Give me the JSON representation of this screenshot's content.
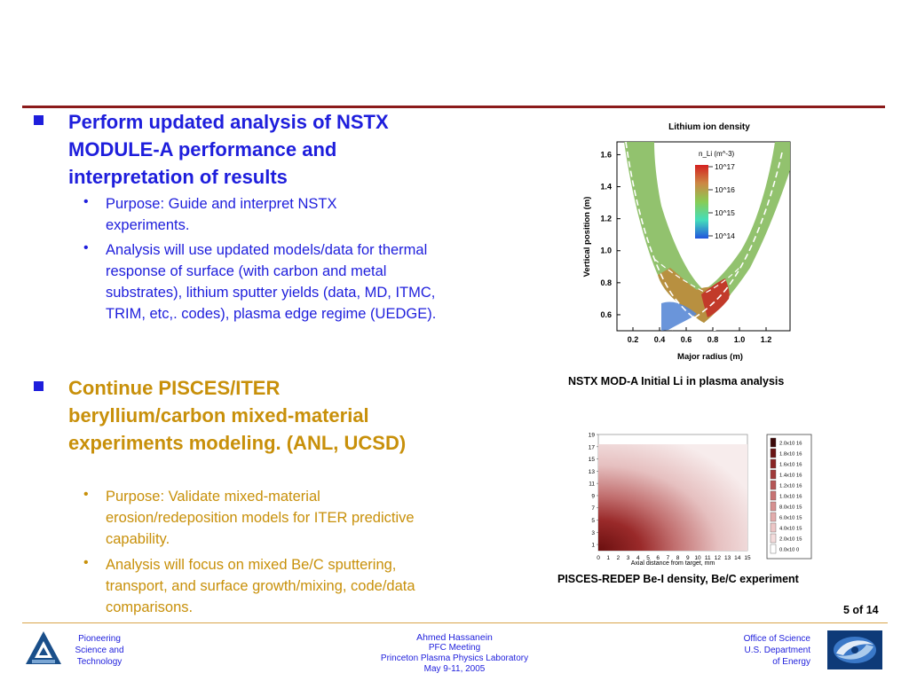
{
  "bullets": [
    {
      "heading": "Perform updated analysis of NSTX MODULE-A performance and interpretation of results",
      "subs": [
        "Purpose:  Guide and interpret NSTX experiments.",
        "Analysis will use updated models/data for thermal response of surface (with carbon and metal substrates), lithium sputter yields (data, MD, ITMC, TRIM, etc,. codes), plasma edge regime (UEDGE)."
      ]
    },
    {
      "heading": "Continue PISCES/ITER beryllium/carbon mixed-material experiments modeling. (ANL, UCSD)",
      "subs": [
        "Purpose:  Validate mixed-material erosion/redeposition models for ITER predictive capability.",
        "Analysis will focus on mixed Be/C sputtering, transport, and surface growth/mixing, code/data comparisons."
      ]
    }
  ],
  "chart_data": [
    {
      "type": "heatmap",
      "title": "Lithium ion density",
      "xlabel": "Major radius (m)",
      "ylabel": "Vertical position (m)",
      "x_ticks": [
        "0.2",
        "0.4",
        "0.6",
        "0.8",
        "1.0",
        "1.2"
      ],
      "y_ticks": [
        "0.6",
        "0.8",
        "1.0",
        "1.2",
        "1.4",
        "1.6"
      ],
      "xlim": [
        0.08,
        1.38
      ],
      "ylim": [
        0.5,
        1.68
      ],
      "colorbar_label": "n_Li (m^-3)",
      "colorbar_ticks": [
        "10^17",
        "10^16",
        "10^15",
        "10^14"
      ],
      "caption": "NSTX MOD-A Initial Li in plasma analysis"
    },
    {
      "type": "heatmap",
      "xlabel": "Axial distance from target, mm",
      "x_ticks": [
        "0",
        "1",
        "2",
        "3",
        "4",
        "5",
        "6",
        "7",
        "8",
        "9",
        "10",
        "11",
        "12",
        "13",
        "14",
        "15"
      ],
      "y_ticks": [
        "1",
        "3",
        "5",
        "7",
        "9",
        "11",
        "13",
        "15",
        "17",
        "19"
      ],
      "xlim": [
        0,
        15
      ],
      "ylim": [
        0,
        19
      ],
      "legend_levels": [
        "2.0x10 16",
        "1.8x10 16",
        "1.6x10 16",
        "1.4x10 16",
        "1.2x10 16",
        "1.0x10 16",
        "8.0x10 15",
        "6.0x10 15",
        "4.0x10 15",
        "2.0x10 15",
        "0.0x10 0"
      ],
      "caption": "PISCES-REDEP Be-I density, Be/C experiment"
    }
  ],
  "page_number": "5 of 14",
  "footer": {
    "left": [
      "Pioneering",
      "Science and",
      "Technology"
    ],
    "center": [
      "Ahmed Hassanein",
      "PFC Meeting",
      "Princeton Plasma Physics Laboratory",
      "May 9-11, 2005"
    ],
    "right": [
      "Office of  Science",
      "U.S. Department",
      "of Energy"
    ]
  },
  "colors": {
    "heading_blue": "#1e1edc",
    "heading_gold": "#c8900a",
    "rule_red": "#8b1a1a",
    "rule_gold": "#d9a44a"
  }
}
